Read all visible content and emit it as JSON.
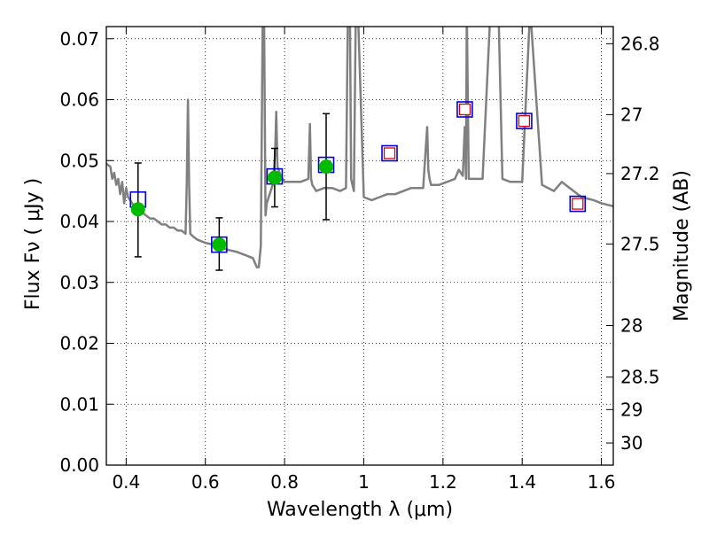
{
  "chart_data": {
    "type": "scatter",
    "title": "",
    "xlabel": "Wavelength  λ (μm)",
    "ylabel": "Flux  Fν  ( μJy )",
    "ylabel_right": "Magnitude (AB)",
    "xlim": [
      0.35,
      1.63
    ],
    "ylim": [
      0.0,
      0.072
    ],
    "x_ticks": [
      0.4,
      0.6,
      0.8,
      1.0,
      1.2,
      1.4,
      1.6
    ],
    "x_tick_labels": [
      "0.4",
      "0.6",
      "0.8",
      "1",
      "1.2",
      "1.4",
      "1.6"
    ],
    "y_ticks": [
      0.0,
      0.01,
      0.02,
      0.03,
      0.04,
      0.05,
      0.06,
      0.07
    ],
    "y_tick_labels": [
      "0.00",
      "0.01",
      "0.02",
      "0.03",
      "0.04",
      "0.05",
      "0.06",
      "0.07"
    ],
    "right_ticks": [
      {
        "label": "26.8",
        "value": 26.8
      },
      {
        "label": "27",
        "value": 27.0
      },
      {
        "label": "27.2",
        "value": 27.2
      },
      {
        "label": "27.5",
        "value": 27.5
      },
      {
        "label": "28",
        "value": 28.0
      },
      {
        "label": "28.5",
        "value": 28.5
      },
      {
        "label": "29",
        "value": 29.0
      },
      {
        "label": "30",
        "value": 30.0
      }
    ],
    "grid": true,
    "legend": "none",
    "colors": {
      "model": "#808080",
      "observed": "#00bb00",
      "model_box": "#0000dd",
      "predicted_box": "#dd0000",
      "errorbar": "#000000"
    },
    "series": [
      {
        "kind": "model_spectrum",
        "x": [
          0.35,
          0.36,
          0.365,
          0.37,
          0.375,
          0.38,
          0.385,
          0.39,
          0.395,
          0.4,
          0.405,
          0.41,
          0.42,
          0.43,
          0.44,
          0.45,
          0.46,
          0.47,
          0.48,
          0.49,
          0.5,
          0.51,
          0.52,
          0.53,
          0.54,
          0.55,
          0.553,
          0.556,
          0.559,
          0.562,
          0.57,
          0.58,
          0.6,
          0.62,
          0.64,
          0.65,
          0.66,
          0.68,
          0.7,
          0.72,
          0.73,
          0.735,
          0.74,
          0.745,
          0.748,
          0.752,
          0.755,
          0.76,
          0.77,
          0.776,
          0.779,
          0.782,
          0.79,
          0.8,
          0.82,
          0.84,
          0.86,
          0.864,
          0.867,
          0.87,
          0.88,
          0.9,
          0.92,
          0.94,
          0.955,
          0.96,
          0.965,
          0.968,
          0.975,
          0.98,
          0.985,
          1.0,
          1.02,
          1.04,
          1.06,
          1.08,
          1.1,
          1.12,
          1.15,
          1.16,
          1.163,
          1.166,
          1.17,
          1.19,
          1.21,
          1.23,
          1.24,
          1.25,
          1.255,
          1.258,
          1.26,
          1.265,
          1.28,
          1.3,
          1.32,
          1.34,
          1.35,
          1.37,
          1.4,
          1.42,
          1.45,
          1.48,
          1.5,
          1.52,
          1.55,
          1.58,
          1.6,
          1.63
        ],
        "y": [
          0.0495,
          0.049,
          0.047,
          0.048,
          0.046,
          0.047,
          0.0445,
          0.0465,
          0.043,
          0.0455,
          0.044,
          0.0435,
          0.0425,
          0.0415,
          0.0415,
          0.041,
          0.0405,
          0.0405,
          0.04,
          0.0395,
          0.0395,
          0.039,
          0.039,
          0.0385,
          0.0385,
          0.038,
          0.046,
          0.06,
          0.046,
          0.038,
          0.0375,
          0.037,
          0.0365,
          0.0362,
          0.0358,
          0.0355,
          0.0353,
          0.035,
          0.0345,
          0.034,
          0.0325,
          0.0325,
          0.036,
          0.075,
          0.075,
          0.041,
          0.043,
          0.044,
          0.046,
          0.051,
          0.058,
          0.049,
          0.0475,
          0.0465,
          0.0465,
          0.0465,
          0.047,
          0.056,
          0.047,
          0.046,
          0.045,
          0.0455,
          0.0455,
          0.045,
          0.0455,
          0.075,
          0.075,
          0.047,
          0.045,
          0.075,
          0.075,
          0.044,
          0.0435,
          0.044,
          0.0445,
          0.0445,
          0.045,
          0.0455,
          0.0455,
          0.0555,
          0.0485,
          0.047,
          0.046,
          0.046,
          0.0465,
          0.047,
          0.0485,
          0.0475,
          0.0555,
          0.047,
          0.075,
          0.047,
          0.047,
          0.047,
          0.075,
          0.075,
          0.047,
          0.0465,
          0.0465,
          0.075,
          0.046,
          0.045,
          0.0465,
          0.0455,
          0.044,
          0.0435,
          0.043,
          0.0425
        ]
      },
      {
        "kind": "observed_photometry",
        "name": "",
        "x": [
          0.43,
          0.635,
          0.775,
          0.905
        ],
        "y": [
          0.042,
          0.0362,
          0.0472,
          0.049
        ],
        "yerr_low": [
          0.0078,
          0.0042,
          0.0048,
          0.0087
        ],
        "yerr_high": [
          0.0076,
          0.0044,
          0.0048,
          0.0087
        ]
      },
      {
        "kind": "model_band_flux",
        "x": [
          0.43,
          0.635,
          0.775,
          0.905,
          1.065,
          1.255,
          1.405,
          1.54
        ],
        "y": [
          0.0436,
          0.0362,
          0.0474,
          0.0493,
          0.0512,
          0.0584,
          0.0565,
          0.0429
        ]
      },
      {
        "kind": "predicted_flux",
        "x": [
          1.065,
          1.255,
          1.405,
          1.54
        ],
        "y": [
          0.0512,
          0.0584,
          0.0565,
          0.0429
        ]
      }
    ]
  }
}
